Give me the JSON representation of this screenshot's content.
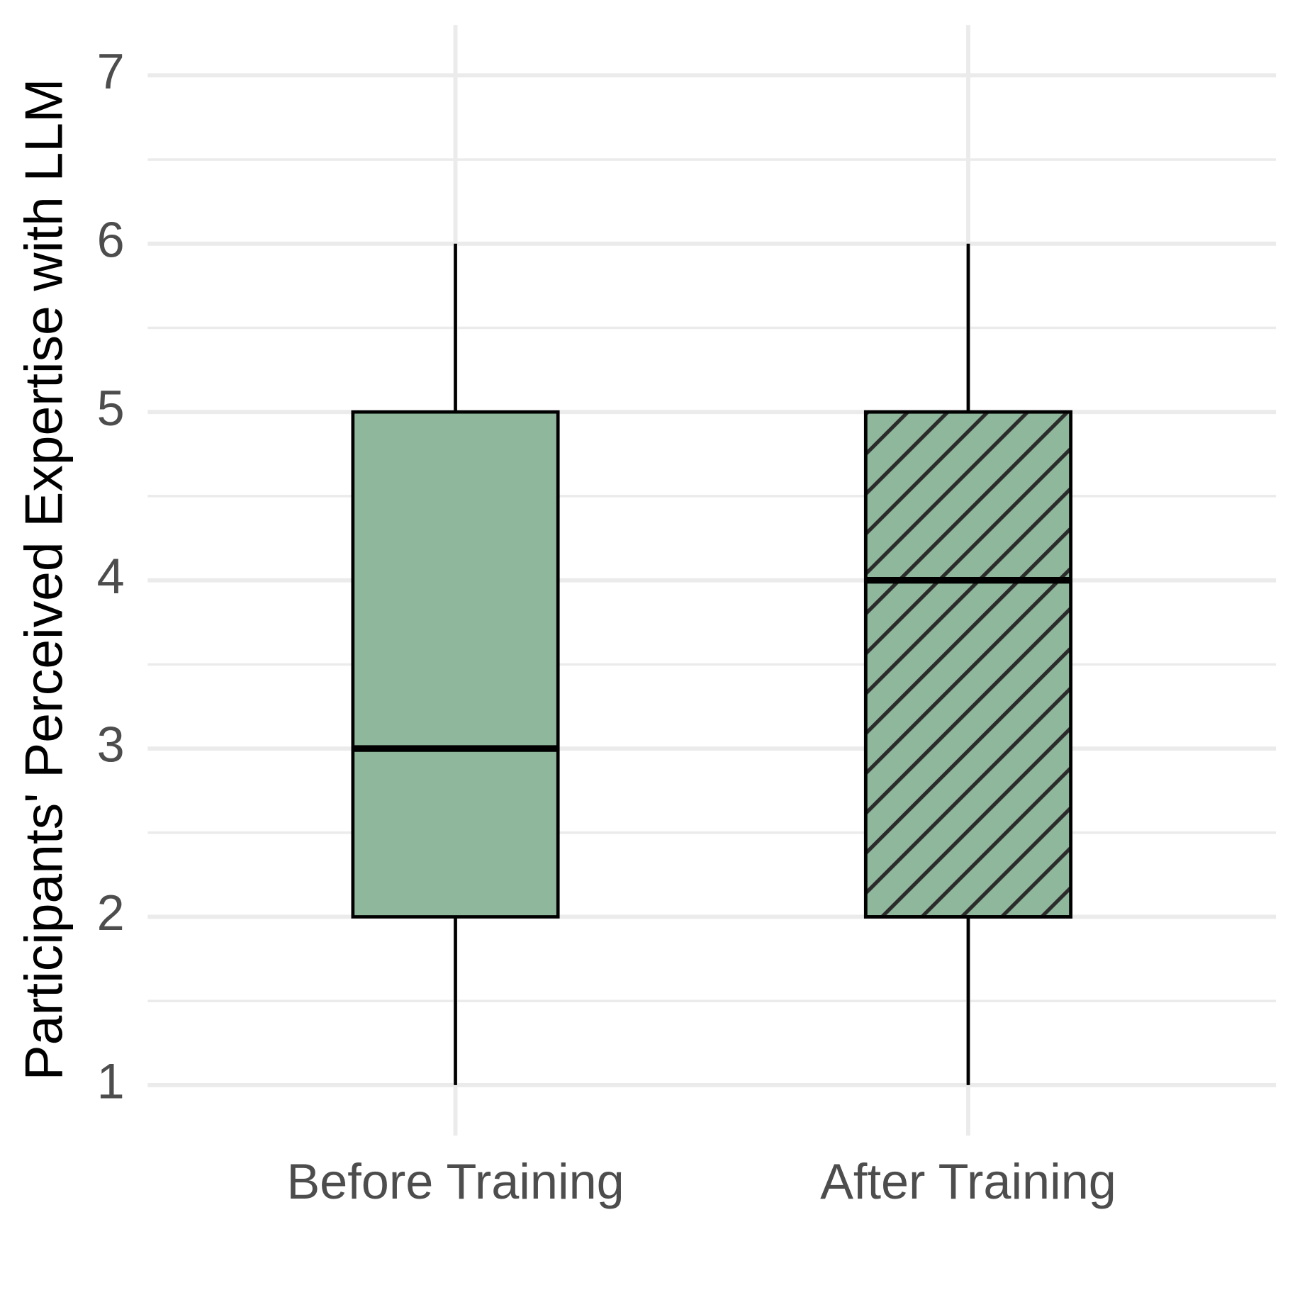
{
  "chart_data": {
    "type": "box",
    "y_label": "Participants' Perceived Expertise with LLM",
    "categories": [
      "Before Training",
      "After Training"
    ],
    "series": [
      {
        "color": "#8fb79b",
        "patterns": [
          "none",
          "stripe"
        ],
        "min": [
          1,
          1
        ],
        "q1": [
          2,
          2
        ],
        "median": [
          3,
          4
        ],
        "q3": [
          5,
          5
        ],
        "max": [
          6,
          6
        ]
      }
    ],
    "ylim": [
      0.7,
      7.3
    ],
    "yticks": [
      1,
      2,
      3,
      4,
      5,
      6,
      7
    ],
    "minor_yticks": [
      1.5,
      2.5,
      3.5,
      4.5,
      5.5,
      6.5
    ],
    "grid": true
  }
}
